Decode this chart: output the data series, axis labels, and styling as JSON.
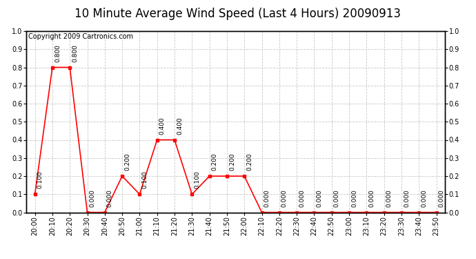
{
  "title": "10 Minute Average Wind Speed (Last 4 Hours) 20090913",
  "copyright": "Copyright 2009 Cartronics.com",
  "x_labels": [
    "20:00",
    "20:10",
    "20:20",
    "20:30",
    "20:40",
    "20:50",
    "21:00",
    "21:10",
    "21:20",
    "21:30",
    "21:40",
    "21:50",
    "22:00",
    "22:10",
    "22:20",
    "22:30",
    "22:40",
    "22:50",
    "23:00",
    "23:10",
    "23:20",
    "23:30",
    "23:40",
    "23:50"
  ],
  "y_values": [
    0.1,
    0.8,
    0.8,
    0.0,
    0.0,
    0.2,
    0.1,
    0.4,
    0.4,
    0.1,
    0.2,
    0.2,
    0.2,
    0.0,
    0.0,
    0.0,
    0.0,
    0.0,
    0.0,
    0.0,
    0.0,
    0.0,
    0.0,
    0.0
  ],
  "line_color": "#ff0000",
  "marker_color": "#ff0000",
  "bg_color": "#ffffff",
  "grid_color": "#c8c8c8",
  "ylim": [
    0.0,
    1.0
  ],
  "yticks": [
    0.0,
    0.1,
    0.2,
    0.3,
    0.4,
    0.5,
    0.6,
    0.7,
    0.8,
    0.9,
    1.0
  ],
  "title_fontsize": 12,
  "copyright_fontsize": 7,
  "tick_fontsize": 7,
  "annotation_fontsize": 6.5
}
